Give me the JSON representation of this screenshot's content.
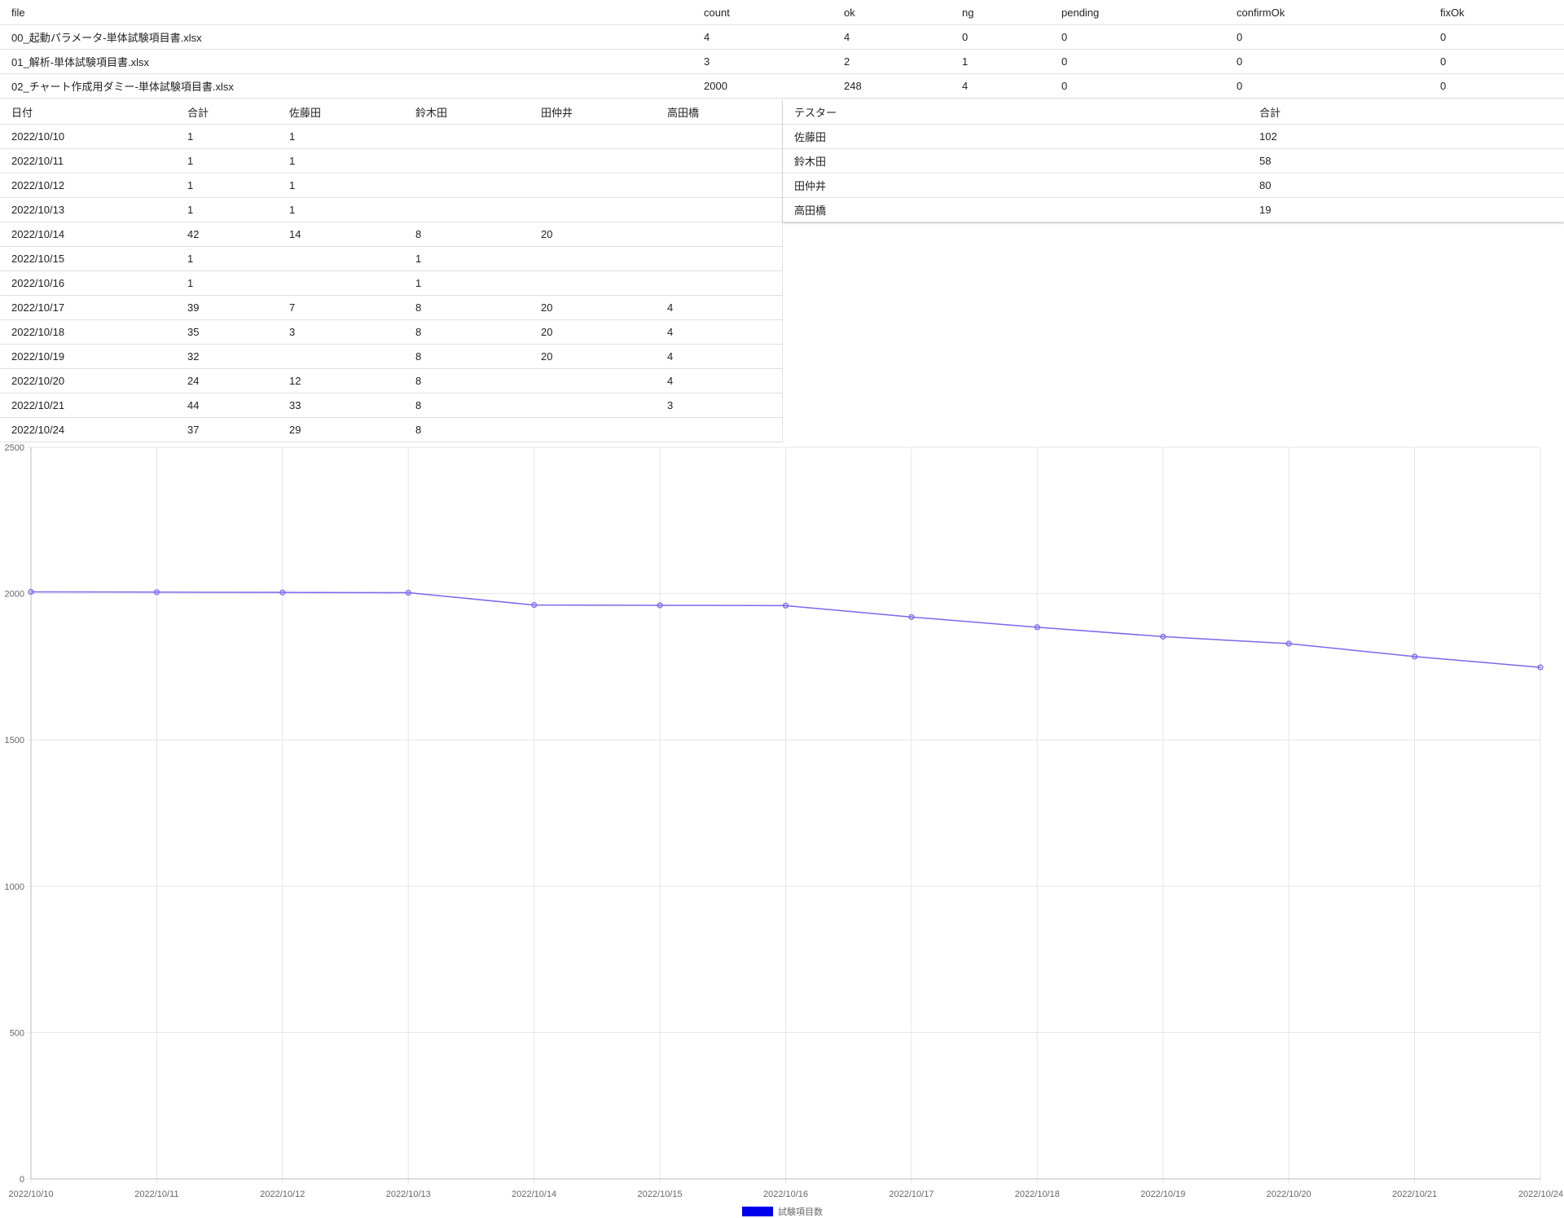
{
  "file_table": {
    "headers": [
      "file",
      "count",
      "ok",
      "ng",
      "pending",
      "confirmOk",
      "fixOk"
    ],
    "rows": [
      [
        "00_起動パラメータ-単体試験項目書.xlsx",
        "4",
        "4",
        "0",
        "0",
        "0",
        "0"
      ],
      [
        "01_解析-単体試験項目書.xlsx",
        "3",
        "2",
        "1",
        "0",
        "0",
        "0"
      ],
      [
        "02_チャート作成用ダミー-単体試験項目書.xlsx",
        "2000",
        "248",
        "4",
        "0",
        "0",
        "0"
      ]
    ]
  },
  "daily_table": {
    "headers": [
      "日付",
      "合計",
      "佐藤田",
      "鈴木田",
      "田仲井",
      "高田橋"
    ],
    "rows": [
      [
        "2022/10/10",
        "1",
        "1",
        "",
        "",
        ""
      ],
      [
        "2022/10/11",
        "1",
        "1",
        "",
        "",
        ""
      ],
      [
        "2022/10/12",
        "1",
        "1",
        "",
        "",
        ""
      ],
      [
        "2022/10/13",
        "1",
        "1",
        "",
        "",
        ""
      ],
      [
        "2022/10/14",
        "42",
        "14",
        "8",
        "20",
        ""
      ],
      [
        "2022/10/15",
        "1",
        "",
        "1",
        "",
        ""
      ],
      [
        "2022/10/16",
        "1",
        "",
        "1",
        "",
        ""
      ],
      [
        "2022/10/17",
        "39",
        "7",
        "8",
        "20",
        "4"
      ],
      [
        "2022/10/18",
        "35",
        "3",
        "8",
        "20",
        "4"
      ],
      [
        "2022/10/19",
        "32",
        "",
        "8",
        "20",
        "4"
      ],
      [
        "2022/10/20",
        "24",
        "12",
        "8",
        "",
        "4"
      ],
      [
        "2022/10/21",
        "44",
        "33",
        "8",
        "",
        "3"
      ],
      [
        "2022/10/24",
        "37",
        "29",
        "8",
        "",
        ""
      ]
    ]
  },
  "tester_table": {
    "headers": [
      "テスター",
      "合計"
    ],
    "rows": [
      [
        "佐藤田",
        "102"
      ],
      [
        "鈴木田",
        "58"
      ],
      [
        "田仲井",
        "80"
      ],
      [
        "高田橋",
        "19"
      ]
    ]
  },
  "chart_data": {
    "type": "line",
    "x": [
      "2022/10/10",
      "2022/10/11",
      "2022/10/12",
      "2022/10/13",
      "2022/10/14",
      "2022/10/15",
      "2022/10/16",
      "2022/10/17",
      "2022/10/18",
      "2022/10/19",
      "2022/10/20",
      "2022/10/21",
      "2022/10/24"
    ],
    "series": [
      {
        "name": "試験項目数",
        "values": [
          2006,
          2005,
          2004,
          2003,
          1961,
          1960,
          1959,
          1920,
          1885,
          1853,
          1829,
          1785,
          1748
        ],
        "color": "#7b68ee"
      }
    ],
    "ylim": [
      0,
      2500
    ],
    "yticks": [
      0,
      500,
      1000,
      1500,
      2000,
      2500
    ],
    "grid": true,
    "legend_position": "bottom",
    "legend_swatch_color": "#0000ee"
  }
}
